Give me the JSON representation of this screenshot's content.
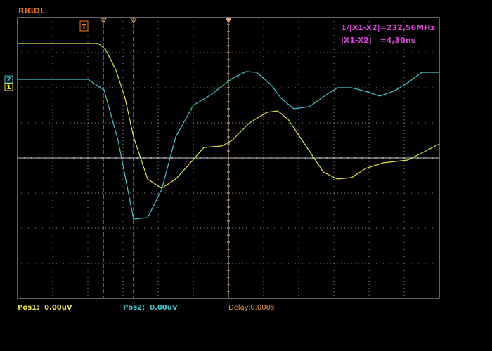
{
  "header": {
    "brand": "RIGOL",
    "trigger_marker": "T"
  },
  "channels": [
    {
      "marker": "1"
    },
    {
      "marker": "2"
    }
  ],
  "measurements": [
    "1/|X1-X2|=232,56MHz",
    "|X1-X2|   =4,30ns"
  ],
  "footer": {
    "pos1": "Pos1:  0.00uV",
    "pos2": "Pos2:  0.00uV",
    "delay": "Delay:0.000s"
  }
}
